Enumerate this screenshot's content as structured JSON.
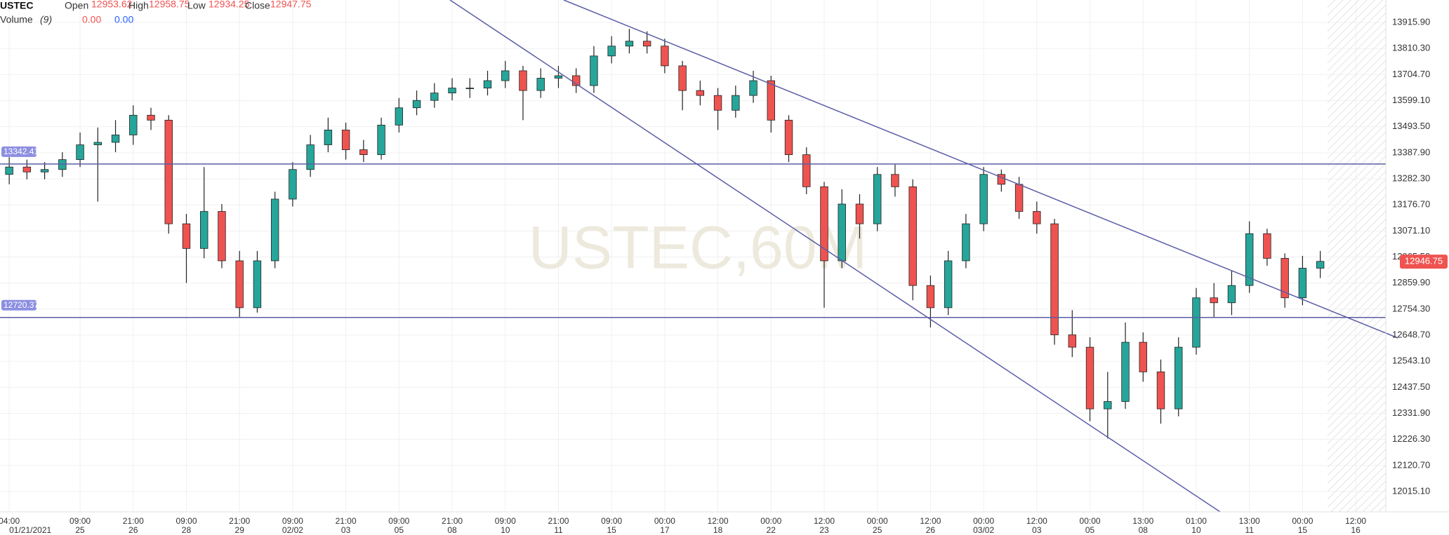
{
  "chart_data": {
    "type": "candlestick",
    "watermark": "USTEC,60M",
    "header": {
      "symbol": "USTEC",
      "fields": [
        {
          "name": "Open",
          "value": 12953.62
        },
        {
          "name": "High",
          "value": 12958.75
        },
        {
          "name": "Low",
          "value": 12934.25
        },
        {
          "name": "Close",
          "value": 12947.75
        }
      ],
      "volume_label": "Volume",
      "volume_period": "(9)",
      "volume_values": [
        {
          "value": 0,
          "label": "0.00"
        },
        {
          "value": 0,
          "label": "0.00"
        }
      ]
    },
    "up_color": "#26a69a",
    "down_color": "#ef5350",
    "level_color": "#5b5ea6",
    "grid": true,
    "x": [
      0,
      1,
      2,
      3,
      4,
      5,
      6,
      7,
      8,
      9,
      10,
      11,
      12,
      13,
      14,
      15,
      16,
      17,
      18,
      19,
      20,
      21,
      22,
      23,
      24,
      25,
      26,
      27,
      28,
      29,
      30,
      31,
      32,
      33,
      34,
      35,
      36,
      37,
      38,
      39,
      40,
      41,
      42,
      43,
      44,
      45,
      46,
      47,
      48,
      49,
      50,
      51,
      52,
      53,
      54,
      55,
      56,
      57,
      58,
      59,
      60,
      61,
      62,
      63,
      64,
      65,
      66,
      67,
      68,
      69,
      70,
      71,
      72,
      73,
      74
    ],
    "open": [
      13300,
      13330,
      13310,
      13320,
      13360,
      13420,
      13430,
      13460,
      13540,
      13520,
      13100,
      13000,
      13150,
      12950,
      12760,
      12950,
      13200,
      13320,
      13420,
      13480,
      13400,
      13380,
      13500,
      13570,
      13600,
      13630,
      13650,
      13650,
      13680,
      13720,
      13640,
      13690,
      13700,
      13660,
      13780,
      13820,
      13840,
      13820,
      13740,
      13640,
      13620,
      13560,
      13620,
      13680,
      13520,
      13380,
      13250,
      12950,
      13180,
      13100,
      13300,
      13250,
      12850,
      12760,
      12950,
      13100,
      13300,
      13260,
      13150,
      13100,
      12650,
      12600,
      12350,
      12380,
      12620,
      12500,
      12350,
      12600,
      12800,
      12780,
      12850,
      13060,
      12960,
      12800,
      12920
    ],
    "high": [
      13370,
      13360,
      13350,
      13390,
      13470,
      13490,
      13520,
      13580,
      13570,
      13540,
      13140,
      13330,
      13180,
      12990,
      12990,
      13230,
      13350,
      13460,
      13530,
      13510,
      13440,
      13530,
      13610,
      13640,
      13670,
      13690,
      13690,
      13720,
      13760,
      13740,
      13730,
      13740,
      13730,
      13820,
      13860,
      13890,
      13880,
      13850,
      13760,
      13680,
      13650,
      13660,
      13720,
      13700,
      13540,
      13410,
      13270,
      13240,
      13220,
      13330,
      13340,
      13280,
      12890,
      12990,
      13140,
      13330,
      13320,
      13290,
      13190,
      13120,
      12750,
      12640,
      12500,
      12700,
      12660,
      12550,
      12640,
      12840,
      12860,
      12910,
      13110,
      13080,
      12980,
      12970,
      12990
    ],
    "low": [
      13260,
      13280,
      13280,
      13290,
      13330,
      13190,
      13390,
      13420,
      13480,
      13060,
      12860,
      12960,
      12920,
      12720,
      12740,
      12920,
      13170,
      13290,
      13390,
      13360,
      13350,
      13360,
      13470,
      13540,
      13570,
      13600,
      13610,
      13620,
      13650,
      13520,
      13610,
      13650,
      13630,
      13630,
      13750,
      13790,
      13790,
      13710,
      13560,
      13580,
      13480,
      13530,
      13590,
      13470,
      13350,
      13220,
      12760,
      12920,
      13040,
      13070,
      13210,
      12790,
      12680,
      12730,
      12920,
      13070,
      13230,
      13120,
      13060,
      12610,
      12560,
      12300,
      12230,
      12350,
      12460,
      12290,
      12320,
      12570,
      12720,
      12730,
      12820,
      12930,
      12760,
      12770,
      12880
    ],
    "close": [
      13330,
      13310,
      13320,
      13360,
      13420,
      13430,
      13460,
      13540,
      13520,
      13100,
      13000,
      13150,
      12950,
      12760,
      12950,
      13200,
      13320,
      13420,
      13480,
      13400,
      13380,
      13500,
      13570,
      13600,
      13630,
      13650,
      13650,
      13680,
      13720,
      13640,
      13690,
      13700,
      13660,
      13780,
      13820,
      13840,
      13820,
      13740,
      13640,
      13620,
      13560,
      13620,
      13680,
      13520,
      13380,
      13250,
      12950,
      13180,
      13100,
      13300,
      13250,
      12850,
      12760,
      12950,
      13100,
      13300,
      13260,
      13150,
      13100,
      12650,
      12600,
      12350,
      12380,
      12620,
      12500,
      12350,
      12600,
      12800,
      12780,
      12850,
      13060,
      12960,
      12800,
      12920,
      12947.75
    ],
    "levels": [
      13342.41,
      12720.37
    ],
    "last_price": 12946.75,
    "xlim": [
      -0.52,
      77.7
    ],
    "ylim": [
      11938.4,
      14006.8
    ],
    "xticks": [
      {
        "value": 0,
        "label": "04:00"
      },
      {
        "value": 4,
        "label": "09:00"
      },
      {
        "value": 7,
        "label": "21:00"
      },
      {
        "value": 10,
        "label": "09:00"
      },
      {
        "value": 13,
        "label": "21:00"
      },
      {
        "value": 16,
        "label": "09:00"
      },
      {
        "value": 19,
        "label": "21:00"
      },
      {
        "value": 22,
        "label": "09:00"
      },
      {
        "value": 25,
        "label": "21:00"
      },
      {
        "value": 28,
        "label": "09:00"
      },
      {
        "value": 31,
        "label": "21:00"
      },
      {
        "value": 34,
        "label": "09:00"
      },
      {
        "value": 37,
        "label": "00:00"
      },
      {
        "value": 40,
        "label": "12:00"
      },
      {
        "value": 43,
        "label": "00:00"
      },
      {
        "value": 46,
        "label": "12:00"
      },
      {
        "value": 49,
        "label": "00:00"
      },
      {
        "value": 52,
        "label": "12:00"
      },
      {
        "value": 55,
        "label": "00:00"
      },
      {
        "value": 58,
        "label": "12:00"
      },
      {
        "value": 61,
        "label": "00:00"
      },
      {
        "value": 64,
        "label": "13:00"
      },
      {
        "value": 67,
        "label": "01:00"
      },
      {
        "value": 70,
        "label": "13:00"
      },
      {
        "value": 73,
        "label": "00:00"
      },
      {
        "value": 76,
        "label": "12:00"
      }
    ],
    "xtick_dates": [
      "01/21/2021",
      "25",
      "26",
      "28",
      "29",
      "02/02",
      "03",
      "05",
      "08",
      "10",
      "11",
      "15",
      "17",
      "18",
      "22",
      "23",
      "25",
      "26",
      "03/02",
      "03",
      "05",
      "08",
      "10",
      "11",
      "15",
      "16"
    ],
    "yticks": [
      {
        "value": 13915.9,
        "label": "13915.90"
      },
      {
        "value": 13810.3,
        "label": "13810.30"
      },
      {
        "value": 13704.7,
        "label": "13704.70"
      },
      {
        "value": 13599.1,
        "label": "13599.10"
      },
      {
        "value": 13493.5,
        "label": "13493.50"
      },
      {
        "value": 13387.9,
        "label": "13387.90"
      },
      {
        "value": 13282.3,
        "label": "13282.30"
      },
      {
        "value": 13176.7,
        "label": "13176.70"
      },
      {
        "value": 13071.1,
        "label": "13071.10"
      },
      {
        "value": 12965.5,
        "label": "12965.50"
      },
      {
        "value": 12859.9,
        "label": "12859.90"
      },
      {
        "value": 12754.3,
        "label": "12754.30"
      },
      {
        "value": 12648.7,
        "label": "12648.70"
      },
      {
        "value": 12543.1,
        "label": "12543.10"
      },
      {
        "value": 12437.5,
        "label": "12437.50"
      },
      {
        "value": 12331.9,
        "label": "12331.90"
      },
      {
        "value": 12226.3,
        "label": "12226.30"
      },
      {
        "value": 12120.7,
        "label": "12120.70"
      },
      {
        "value": 12015.1,
        "label": "12015.10"
      }
    ]
  }
}
